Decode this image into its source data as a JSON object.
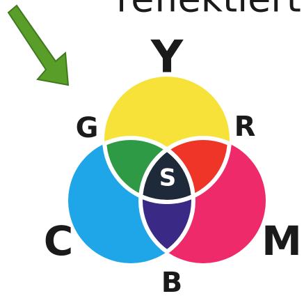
{
  "header": {
    "title": "reflektiert"
  },
  "labels": {
    "yellow": "Y",
    "green": "G",
    "red": "R",
    "black": "S",
    "cyan": "C",
    "magenta": "M",
    "blue": "B"
  }
}
